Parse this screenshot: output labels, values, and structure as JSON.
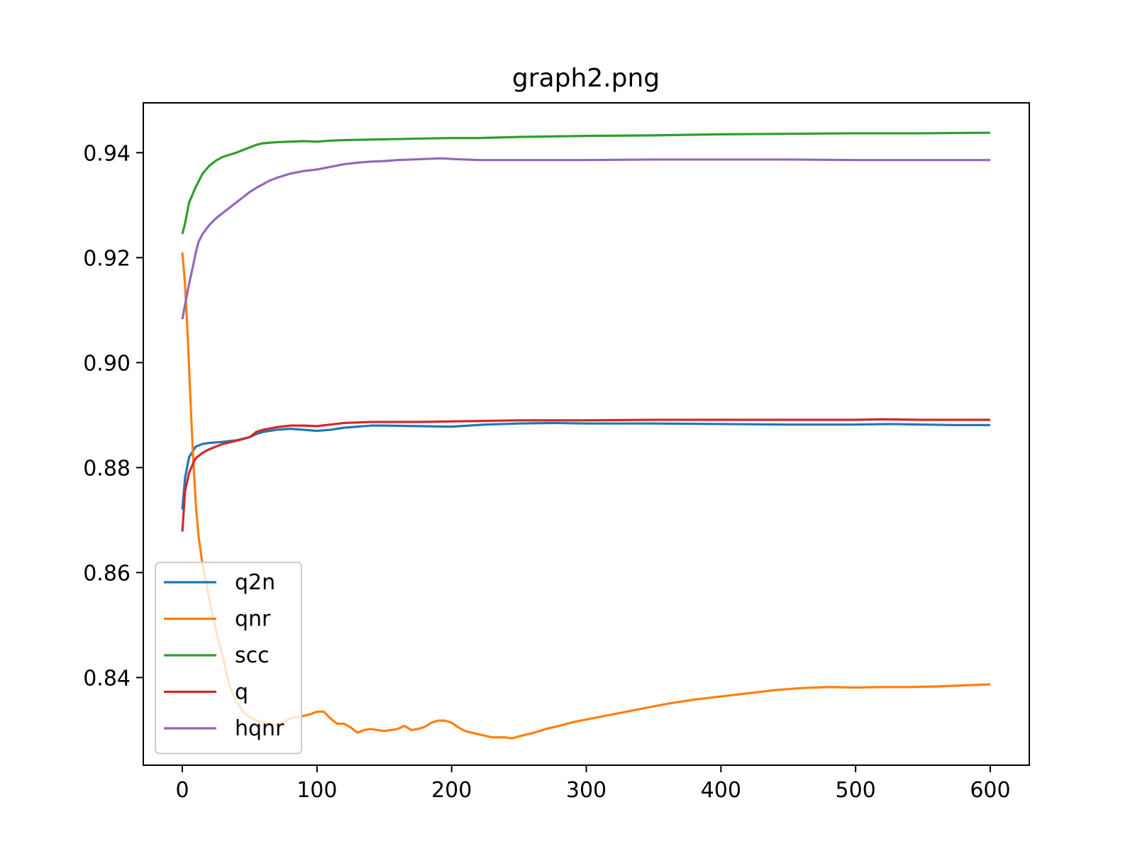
{
  "chart_data": {
    "type": "line",
    "title": "graph2.png",
    "xlabel": "",
    "ylabel": "",
    "xlim": [
      -29,
      629
    ],
    "ylim": [
      0.8233,
      0.9495
    ],
    "xticks": [
      0,
      100,
      200,
      300,
      400,
      500,
      600
    ],
    "yticks": [
      0.84,
      0.86,
      0.88,
      0.9,
      0.92,
      0.94
    ],
    "xtick_labels": [
      "0",
      "100",
      "200",
      "300",
      "400",
      "500",
      "600"
    ],
    "ytick_labels": [
      "0.84",
      "0.86",
      "0.88",
      "0.90",
      "0.92",
      "0.94"
    ],
    "grid": false,
    "legend_position": "lower-left",
    "series": [
      {
        "name": "q2n",
        "color": "#1f77b4",
        "x": [
          0,
          2,
          5,
          10,
          15,
          20,
          30,
          40,
          50,
          55,
          60,
          70,
          80,
          90,
          100,
          110,
          120,
          130,
          140,
          150,
          175,
          200,
          225,
          250,
          275,
          300,
          350,
          400,
          450,
          500,
          525,
          550,
          575,
          600
        ],
        "y": [
          0.872,
          0.878,
          0.882,
          0.884,
          0.8845,
          0.8847,
          0.8849,
          0.8852,
          0.8858,
          0.8864,
          0.8868,
          0.8872,
          0.8874,
          0.8872,
          0.887,
          0.8872,
          0.8876,
          0.8878,
          0.888,
          0.888,
          0.8879,
          0.8878,
          0.8882,
          0.8884,
          0.8885,
          0.8884,
          0.8884,
          0.8883,
          0.8882,
          0.8882,
          0.8883,
          0.8882,
          0.8881,
          0.8881
        ]
      },
      {
        "name": "qnr",
        "color": "#ff7f0e",
        "x": [
          0,
          2,
          4,
          6,
          8,
          10,
          12,
          15,
          20,
          25,
          30,
          35,
          40,
          45,
          50,
          55,
          60,
          65,
          70,
          75,
          80,
          85,
          90,
          95,
          100,
          105,
          110,
          115,
          120,
          125,
          130,
          135,
          140,
          145,
          150,
          155,
          160,
          165,
          170,
          175,
          180,
          185,
          190,
          195,
          200,
          205,
          210,
          220,
          230,
          240,
          245,
          250,
          260,
          270,
          280,
          290,
          300,
          320,
          340,
          360,
          380,
          400,
          420,
          440,
          460,
          480,
          500,
          520,
          540,
          560,
          580,
          600
        ],
        "y": [
          0.921,
          0.915,
          0.905,
          0.893,
          0.882,
          0.873,
          0.867,
          0.8615,
          0.855,
          0.849,
          0.844,
          0.8385,
          0.8355,
          0.8335,
          0.8325,
          0.8318,
          0.8315,
          0.8312,
          0.831,
          0.8315,
          0.8322,
          0.8325,
          0.8327,
          0.833,
          0.8335,
          0.8335,
          0.8322,
          0.8312,
          0.8312,
          0.8305,
          0.8295,
          0.83,
          0.8302,
          0.83,
          0.8298,
          0.83,
          0.8302,
          0.8308,
          0.83,
          0.8302,
          0.8306,
          0.8314,
          0.8318,
          0.8318,
          0.8314,
          0.8305,
          0.8298,
          0.8292,
          0.8286,
          0.8286,
          0.8284,
          0.8288,
          0.8294,
          0.8302,
          0.8308,
          0.8315,
          0.832,
          0.833,
          0.834,
          0.835,
          0.8358,
          0.8364,
          0.837,
          0.8376,
          0.838,
          0.8382,
          0.8381,
          0.8382,
          0.8382,
          0.8383,
          0.8385,
          0.8387
        ]
      },
      {
        "name": "scc",
        "color": "#2ca02c",
        "x": [
          0,
          2,
          5,
          10,
          15,
          20,
          25,
          30,
          35,
          40,
          45,
          50,
          55,
          60,
          70,
          80,
          90,
          100,
          110,
          120,
          140,
          160,
          180,
          200,
          220,
          250,
          300,
          350,
          400,
          450,
          500,
          550,
          600
        ],
        "y": [
          0.9245,
          0.9265,
          0.9305,
          0.9335,
          0.936,
          0.9375,
          0.9385,
          0.9392,
          0.9396,
          0.94,
          0.9405,
          0.941,
          0.9415,
          0.9418,
          0.942,
          0.9421,
          0.9422,
          0.9421,
          0.9423,
          0.9424,
          0.9425,
          0.9426,
          0.9427,
          0.9428,
          0.9428,
          0.943,
          0.9432,
          0.9433,
          0.9435,
          0.9436,
          0.9437,
          0.9437,
          0.9438
        ]
      },
      {
        "name": "q",
        "color": "#d62728",
        "x": [
          0,
          2,
          5,
          8,
          10,
          15,
          20,
          25,
          30,
          40,
          50,
          55,
          60,
          70,
          80,
          90,
          100,
          110,
          120,
          130,
          140,
          150,
          175,
          200,
          225,
          250,
          300,
          350,
          400,
          450,
          500,
          520,
          550,
          575,
          600
        ],
        "y": [
          0.8678,
          0.8755,
          0.879,
          0.8808,
          0.8818,
          0.8828,
          0.8835,
          0.884,
          0.8845,
          0.8851,
          0.8858,
          0.8868,
          0.8872,
          0.8877,
          0.888,
          0.888,
          0.8879,
          0.8882,
          0.8885,
          0.8886,
          0.8887,
          0.8887,
          0.8887,
          0.8888,
          0.8889,
          0.889,
          0.889,
          0.8891,
          0.8891,
          0.8891,
          0.8891,
          0.8892,
          0.8891,
          0.8891,
          0.8891
        ]
      },
      {
        "name": "hqnr",
        "color": "#9467bd",
        "x": [
          0,
          2,
          5,
          8,
          10,
          12,
          15,
          20,
          25,
          30,
          35,
          40,
          45,
          50,
          55,
          60,
          65,
          70,
          75,
          80,
          90,
          100,
          110,
          120,
          130,
          140,
          150,
          160,
          170,
          180,
          190,
          195,
          200,
          210,
          220,
          250,
          300,
          350,
          400,
          450,
          500,
          550,
          600
        ],
        "y": [
          0.9083,
          0.911,
          0.915,
          0.9185,
          0.921,
          0.923,
          0.9245,
          0.9262,
          0.9275,
          0.9285,
          0.9295,
          0.9305,
          0.9315,
          0.9325,
          0.9333,
          0.934,
          0.9347,
          0.9352,
          0.9356,
          0.936,
          0.9365,
          0.9368,
          0.9373,
          0.9378,
          0.9381,
          0.9383,
          0.9384,
          0.9386,
          0.9387,
          0.9388,
          0.9389,
          0.9389,
          0.9388,
          0.9387,
          0.9386,
          0.9386,
          0.9386,
          0.9387,
          0.9387,
          0.9387,
          0.9386,
          0.9386,
          0.9386
        ]
      }
    ]
  }
}
